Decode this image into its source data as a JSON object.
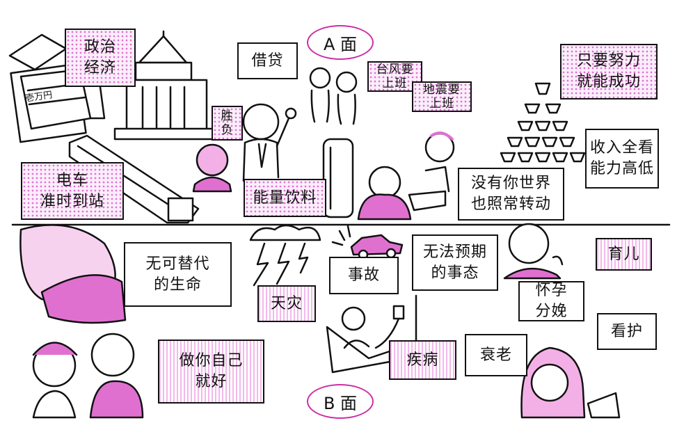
{
  "divider_heading_top": "A 面",
  "divider_heading_bottom": "B 面",
  "side_a": {
    "politics": "政治\n经济",
    "loan": "借贷",
    "typhoon": "台风要\n上班",
    "earthquake": "地震要\n上班",
    "effort": "只要努力\n就能成功",
    "win_lose": "胜\n负",
    "income": "收入全看\n能力高低",
    "train": "电车\n准时到站",
    "energy_drink": "能量饮料",
    "world_turns": "没有你世界\n也照常转动",
    "money_text": "壱万円"
  },
  "side_b": {
    "life": "无可替代\n的生命",
    "accident": "事故",
    "unexpected": "无法预期\n的事态",
    "childcare": "育儿",
    "disaster": "天灾",
    "birth": "怀孕\n分娩",
    "be_yourself": "做你自己\n就好",
    "illness": "疾病",
    "aging": "衰老",
    "nursing": "看护"
  },
  "colors": {
    "pink": "#e070d0",
    "ink": "#111111",
    "oval": "#cc2fa6"
  }
}
